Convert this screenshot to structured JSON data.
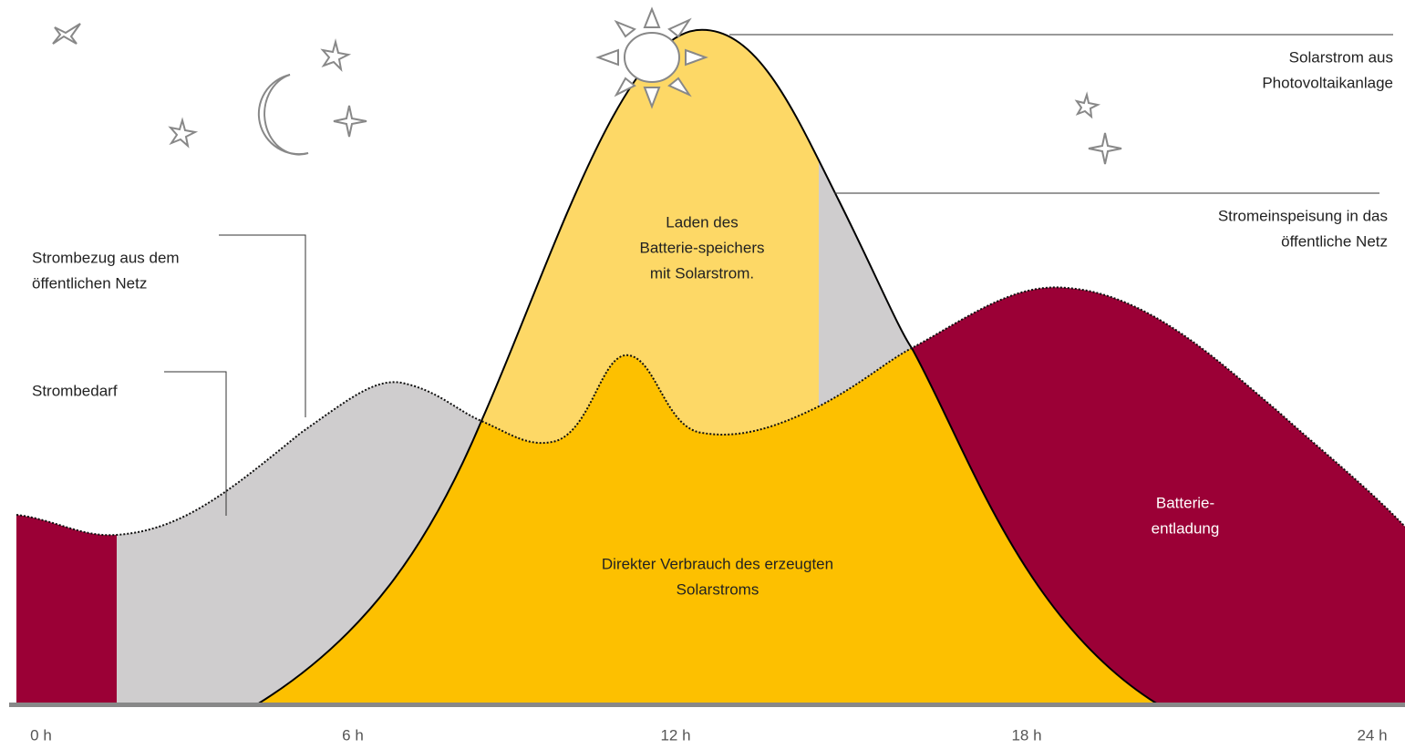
{
  "labels": {
    "pv": [
      "Solarstrom aus",
      "Photovoltaikanlage"
    ],
    "feed_in": [
      "Stromeinspeisung in das",
      "öffentliche Netz"
    ],
    "grid_draw": [
      "Strombezug aus dem",
      "öffentlichen Netz"
    ],
    "demand": [
      "Strombedarf"
    ],
    "charging": [
      "Laden des",
      "Batterie-speichers",
      "mit Solarstrom."
    ],
    "direct": [
      "Direkter Verbrauch des erzeugten",
      "Solarstroms"
    ],
    "discharge": [
      "Batterie-",
      "entladung"
    ]
  },
  "time_axis": [
    "0 h",
    "6 h",
    "12 h",
    "18 h",
    "24 h"
  ]
}
